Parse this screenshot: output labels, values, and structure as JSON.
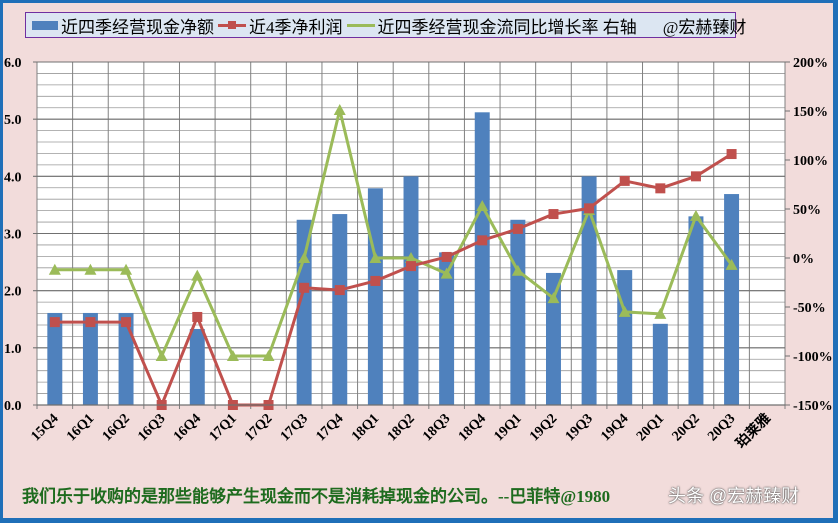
{
  "legend": {
    "bar_label": "近四季经营现金净额",
    "red_label": "近4季净利润",
    "green_label": "近四季经营现金流同比增长率 右轴",
    "credit": "@宏赫臻财"
  },
  "footer": {
    "quote": "我们乐于收购的是那些能够产生现金而不是消耗掉现金的公司。--巴菲特@1980",
    "watermark": "头条 @宏赫臻财"
  },
  "colors": {
    "bar": "#4f81bd",
    "red": "#c0504d",
    "green": "#9bbb59",
    "background": "#f2dcdb",
    "border": "#1f6fb8",
    "legend_bg": "#dce6f2",
    "quote": "#1e6b1e"
  },
  "chart_data": {
    "type": "bar",
    "title": "",
    "categories": [
      "15Q4",
      "16Q1",
      "16Q2",
      "16Q3",
      "16Q4",
      "17Q1",
      "17Q2",
      "17Q3",
      "17Q4",
      "18Q1",
      "18Q2",
      "18Q3",
      "18Q4",
      "19Q1",
      "19Q2",
      "19Q3",
      "19Q4",
      "20Q1",
      "20Q2",
      "20Q3",
      "珀莱雅"
    ],
    "left_axis": {
      "ylim": [
        0,
        6
      ],
      "ticks": [
        "0.0",
        "1.0",
        "2.0",
        "3.0",
        "4.0",
        "5.0",
        "6.0"
      ]
    },
    "right_axis": {
      "ylim": [
        -150,
        200
      ],
      "ticks": [
        "-150%",
        "-100%",
        "-50%",
        "0%",
        "50%",
        "100%",
        "150%",
        "200%"
      ]
    },
    "grid": true,
    "legend_position": "top",
    "series": [
      {
        "name": "近四季经营现金净额",
        "type": "bar",
        "axis": "left",
        "values": [
          1.61,
          1.61,
          1.61,
          0,
          1.33,
          0,
          0,
          3.24,
          3.34,
          3.79,
          4.0,
          2.67,
          5.12,
          3.24,
          2.31,
          4.0,
          2.36,
          1.42,
          3.3,
          3.69,
          null
        ]
      },
      {
        "name": "近4季净利润",
        "type": "line",
        "axis": "left",
        "marker": "square",
        "values": [
          1.45,
          1.45,
          1.45,
          0,
          1.54,
          0,
          0,
          2.05,
          2.01,
          2.17,
          2.43,
          2.59,
          2.88,
          3.08,
          3.34,
          3.44,
          3.92,
          3.79,
          4.0,
          4.39,
          null
        ]
      },
      {
        "name": "近四季经营现金流同比增长率 右轴",
        "type": "line",
        "axis": "right",
        "marker": "triangle",
        "values": [
          -12,
          -12,
          -12,
          -100,
          -18,
          -100,
          -100,
          0,
          151,
          0,
          0,
          -16,
          53,
          -13,
          -41,
          49,
          -55,
          -57,
          43,
          -7,
          null
        ]
      }
    ]
  }
}
